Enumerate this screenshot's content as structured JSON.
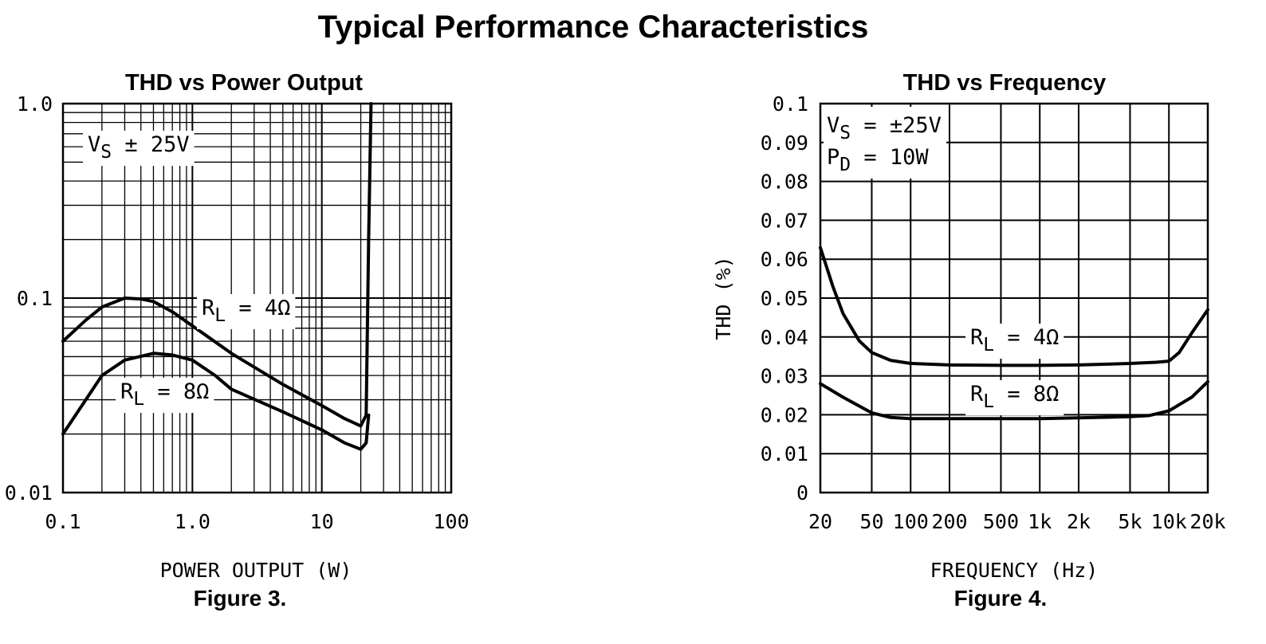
{
  "page_title": "Typical Performance Characteristics",
  "chart_data": [
    {
      "type": "line",
      "title": "THD vs Power Output",
      "figure_caption": "Figure 3.",
      "xlabel": "POWER OUTPUT (W)",
      "ylabel": "",
      "x_scale": "log",
      "y_scale": "log",
      "xlim": [
        0.1,
        100
      ],
      "ylim": [
        0.01,
        1.0
      ],
      "x_ticks": [
        "0.1",
        "1.0",
        "10",
        "100"
      ],
      "y_ticks": [
        "1.0",
        "0.1",
        "0.01"
      ],
      "grid": true,
      "annotations": [
        {
          "vs": "V",
          "vs_sub": "S",
          "vs_rest": " ± 25V"
        }
      ],
      "series": [
        {
          "label_main": "R",
          "label_sub": "L",
          "label_rest": " = 4Ω",
          "x": [
            0.1,
            0.15,
            0.2,
            0.3,
            0.4,
            0.5,
            0.7,
            1.0,
            2,
            5,
            10,
            15,
            20,
            22,
            23,
            24
          ],
          "y": [
            0.06,
            0.077,
            0.09,
            0.1,
            0.099,
            0.096,
            0.085,
            0.072,
            0.052,
            0.036,
            0.028,
            0.024,
            0.022,
            0.025,
            0.2,
            1.0
          ]
        },
        {
          "label_main": "R",
          "label_sub": "L",
          "label_rest": " = 8Ω",
          "x": [
            0.1,
            0.15,
            0.2,
            0.3,
            0.5,
            0.7,
            1.0,
            1.5,
            2,
            5,
            10,
            15,
            20,
            22,
            23
          ],
          "y": [
            0.02,
            0.03,
            0.04,
            0.048,
            0.052,
            0.051,
            0.048,
            0.04,
            0.034,
            0.026,
            0.021,
            0.018,
            0.0167,
            0.018,
            0.025
          ]
        }
      ]
    },
    {
      "type": "line",
      "title": "THD vs Frequency",
      "figure_caption": "Figure 4.",
      "xlabel": "FREQUENCY (Hz)",
      "ylabel": "THD (%)",
      "x_scale": "log",
      "xlim": [
        20,
        20000
      ],
      "ylim": [
        0,
        0.1
      ],
      "x_ticks": [
        {
          "label": "20",
          "value": 20
        },
        {
          "label": "50",
          "value": 50
        },
        {
          "label": "100",
          "value": 100
        },
        {
          "label": "200",
          "value": 200
        },
        {
          "label": "500",
          "value": 500
        },
        {
          "label": "1k",
          "value": 1000
        },
        {
          "label": "2k",
          "value": 2000
        },
        {
          "label": "5k",
          "value": 5000
        },
        {
          "label": "10k",
          "value": 10000
        },
        {
          "label": "20k",
          "value": 20000
        }
      ],
      "y_ticks": [
        "0.1",
        "0.09",
        "0.08",
        "0.07",
        "0.06",
        "0.05",
        "0.04",
        "0.03",
        "0.02",
        "0.01",
        "0"
      ],
      "grid": true,
      "annotations": [
        {
          "vs": "V",
          "vs_sub": "S",
          "vs_rest": " = ±25V"
        },
        {
          "pd": "P",
          "pd_sub": "D",
          "pd_rest": " = 10W"
        }
      ],
      "series": [
        {
          "label_main": "R",
          "label_sub": "L",
          "label_rest": " = 4Ω",
          "x": [
            20,
            25,
            30,
            40,
            50,
            70,
            100,
            200,
            500,
            1000,
            2000,
            5000,
            8000,
            10000,
            12000,
            15000,
            20000
          ],
          "y": [
            0.063,
            0.053,
            0.046,
            0.039,
            0.036,
            0.034,
            0.0332,
            0.0328,
            0.0327,
            0.0327,
            0.0328,
            0.0332,
            0.0335,
            0.0338,
            0.036,
            0.041,
            0.047
          ]
        },
        {
          "label_main": "R",
          "label_sub": "L",
          "label_rest": " = 8Ω",
          "x": [
            20,
            30,
            50,
            70,
            100,
            200,
            500,
            1000,
            2000,
            5000,
            7000,
            10000,
            15000,
            20000
          ],
          "y": [
            0.028,
            0.0245,
            0.0205,
            0.0193,
            0.019,
            0.019,
            0.019,
            0.019,
            0.0192,
            0.0195,
            0.0198,
            0.021,
            0.0245,
            0.0285
          ]
        }
      ]
    }
  ]
}
